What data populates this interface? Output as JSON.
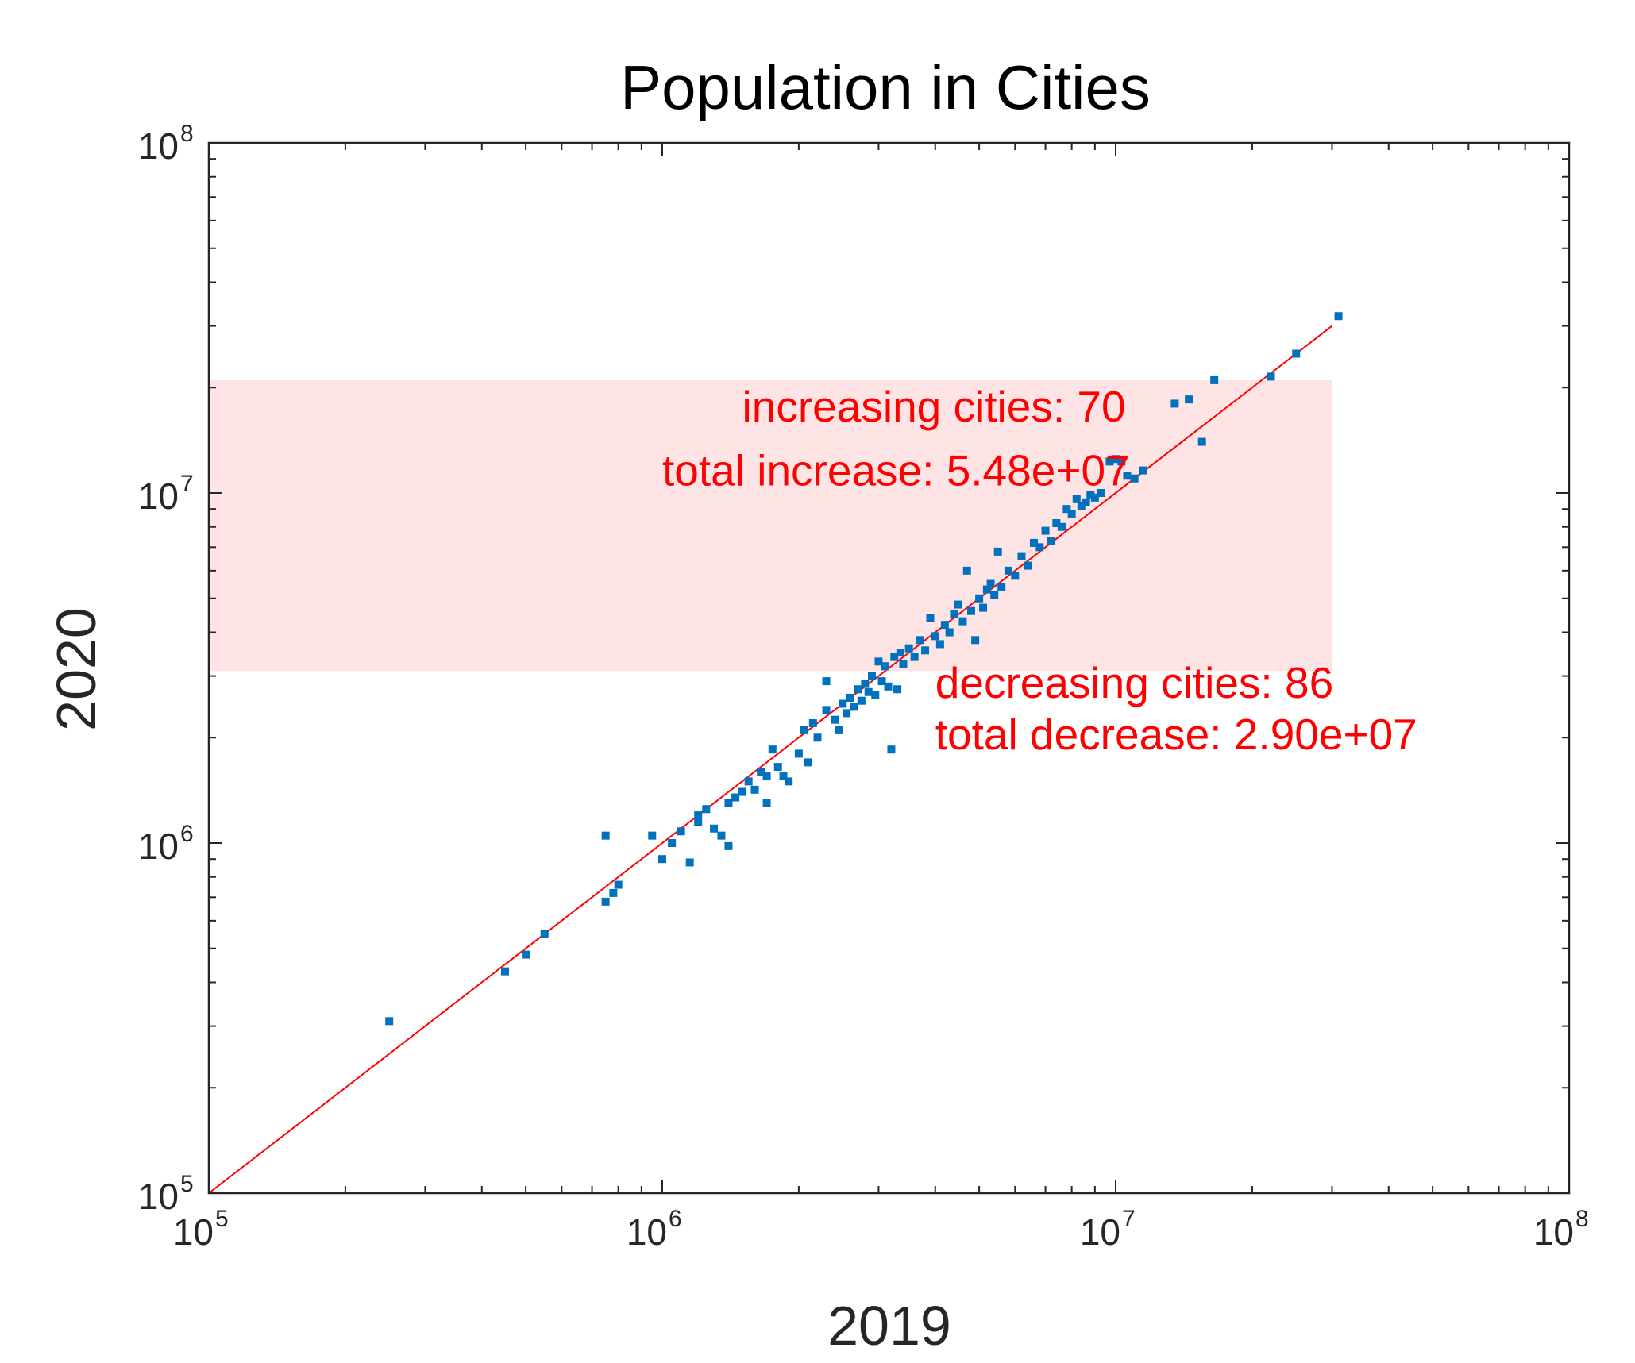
{
  "chart_data": {
    "type": "scatter",
    "title": "Population in Cities",
    "xlabel": "2019",
    "ylabel": "2020",
    "xscale": "log",
    "yscale": "log",
    "xlim": [
      100000,
      100000000
    ],
    "ylim": [
      100000,
      100000000
    ],
    "x_ticks": [
      {
        "value": 100000,
        "base": "10",
        "exp": "5"
      },
      {
        "value": 1000000,
        "base": "10",
        "exp": "6"
      },
      {
        "value": 10000000,
        "base": "10",
        "exp": "7"
      },
      {
        "value": 100000000,
        "base": "10",
        "exp": "8"
      }
    ],
    "y_ticks": [
      {
        "value": 100000,
        "base": "10",
        "exp": "5"
      },
      {
        "value": 1000000,
        "base": "10",
        "exp": "6"
      },
      {
        "value": 10000000,
        "base": "10",
        "exp": "7"
      },
      {
        "value": 100000000,
        "base": "10",
        "exp": "8"
      }
    ],
    "grid": false,
    "colors": {
      "points": "#0072BD",
      "line": "#ff0000",
      "band": "#ffe4e6",
      "annotation": "#ff0000"
    },
    "reference_line": {
      "x": [
        100000,
        30000000
      ],
      "y": [
        100000,
        30000000
      ]
    },
    "band": {
      "x": [
        100000,
        30000000
      ],
      "y": [
        3100000,
        21000000
      ]
    },
    "annotations": [
      {
        "text": "increasing cities: 70",
        "x": 1500000,
        "y": 16000000,
        "anchor": "start"
      },
      {
        "text": "total increase: 5.48e+07",
        "x": 1000000,
        "y": 10500000,
        "anchor": "start"
      },
      {
        "text": "decreasing cities: 86",
        "x": 4000000,
        "y": 2600000,
        "anchor": "start"
      },
      {
        "text": "total decrease: 2.90e+07",
        "x": 4000000,
        "y": 1850000,
        "anchor": "start"
      }
    ],
    "series": [
      {
        "name": "cities",
        "points": [
          [
            250000,
            310000
          ],
          [
            450000,
            430000
          ],
          [
            500000,
            480000
          ],
          [
            550000,
            550000
          ],
          [
            750000,
            1050000
          ],
          [
            750000,
            680000
          ],
          [
            780000,
            720000
          ],
          [
            800000,
            760000
          ],
          [
            950000,
            1050000
          ],
          [
            1000000,
            900000
          ],
          [
            1050000,
            1000000
          ],
          [
            1100000,
            1080000
          ],
          [
            1150000,
            880000
          ],
          [
            1200000,
            1150000
          ],
          [
            1200000,
            1200000
          ],
          [
            1250000,
            1250000
          ],
          [
            1300000,
            1100000
          ],
          [
            1350000,
            1050000
          ],
          [
            1400000,
            980000
          ],
          [
            1400000,
            1300000
          ],
          [
            1450000,
            1350000
          ],
          [
            1500000,
            1400000
          ],
          [
            1550000,
            1500000
          ],
          [
            1600000,
            1420000
          ],
          [
            1650000,
            1600000
          ],
          [
            1700000,
            1300000
          ],
          [
            1700000,
            1550000
          ],
          [
            1750000,
            1850000
          ],
          [
            1800000,
            1650000
          ],
          [
            1850000,
            1550000
          ],
          [
            1900000,
            1500000
          ],
          [
            2000000,
            1800000
          ],
          [
            2050000,
            2100000
          ],
          [
            2100000,
            1700000
          ],
          [
            2150000,
            2200000
          ],
          [
            2200000,
            2000000
          ],
          [
            2300000,
            2400000
          ],
          [
            2300000,
            2900000
          ],
          [
            2400000,
            2250000
          ],
          [
            2450000,
            2100000
          ],
          [
            2500000,
            2500000
          ],
          [
            2550000,
            2350000
          ],
          [
            2600000,
            2600000
          ],
          [
            2650000,
            2450000
          ],
          [
            2700000,
            2750000
          ],
          [
            2750000,
            2550000
          ],
          [
            2800000,
            2850000
          ],
          [
            2850000,
            2700000
          ],
          [
            2900000,
            3000000
          ],
          [
            2950000,
            2650000
          ],
          [
            3000000,
            3300000
          ],
          [
            3050000,
            2900000
          ],
          [
            3100000,
            3200000
          ],
          [
            3150000,
            2800000
          ],
          [
            3200000,
            1850000
          ],
          [
            3250000,
            3400000
          ],
          [
            3300000,
            2750000
          ],
          [
            3350000,
            3500000
          ],
          [
            3400000,
            3250000
          ],
          [
            3500000,
            3600000
          ],
          [
            3600000,
            3400000
          ],
          [
            3700000,
            3800000
          ],
          [
            3800000,
            3550000
          ],
          [
            3900000,
            4400000
          ],
          [
            4000000,
            3900000
          ],
          [
            4100000,
            3700000
          ],
          [
            4200000,
            4200000
          ],
          [
            4300000,
            4000000
          ],
          [
            4400000,
            4500000
          ],
          [
            4500000,
            4800000
          ],
          [
            4600000,
            4300000
          ],
          [
            4700000,
            6000000
          ],
          [
            4800000,
            4600000
          ],
          [
            4900000,
            3800000
          ],
          [
            5000000,
            5000000
          ],
          [
            5100000,
            4700000
          ],
          [
            5200000,
            5300000
          ],
          [
            5300000,
            5500000
          ],
          [
            5400000,
            5100000
          ],
          [
            5500000,
            6800000
          ],
          [
            5600000,
            5400000
          ],
          [
            5800000,
            6000000
          ],
          [
            6000000,
            5800000
          ],
          [
            6200000,
            6600000
          ],
          [
            6400000,
            6200000
          ],
          [
            6600000,
            7200000
          ],
          [
            6800000,
            7000000
          ],
          [
            7000000,
            7800000
          ],
          [
            7200000,
            7300000
          ],
          [
            7400000,
            8200000
          ],
          [
            7600000,
            8000000
          ],
          [
            7800000,
            9000000
          ],
          [
            8000000,
            8700000
          ],
          [
            8200000,
            9600000
          ],
          [
            8400000,
            9200000
          ],
          [
            8600000,
            9400000
          ],
          [
            8800000,
            9900000
          ],
          [
            9000000,
            9700000
          ],
          [
            9300000,
            10000000
          ],
          [
            9700000,
            12300000
          ],
          [
            10000000,
            12500000
          ],
          [
            10300000,
            12300000
          ],
          [
            10600000,
            11200000
          ],
          [
            11000000,
            11000000
          ],
          [
            11500000,
            11600000
          ],
          [
            13500000,
            18000000
          ],
          [
            14500000,
            18500000
          ],
          [
            15500000,
            14000000
          ],
          [
            16500000,
            21000000
          ],
          [
            22000000,
            21500000
          ],
          [
            25000000,
            25000000
          ],
          [
            31000000,
            32000000
          ]
        ]
      }
    ]
  }
}
